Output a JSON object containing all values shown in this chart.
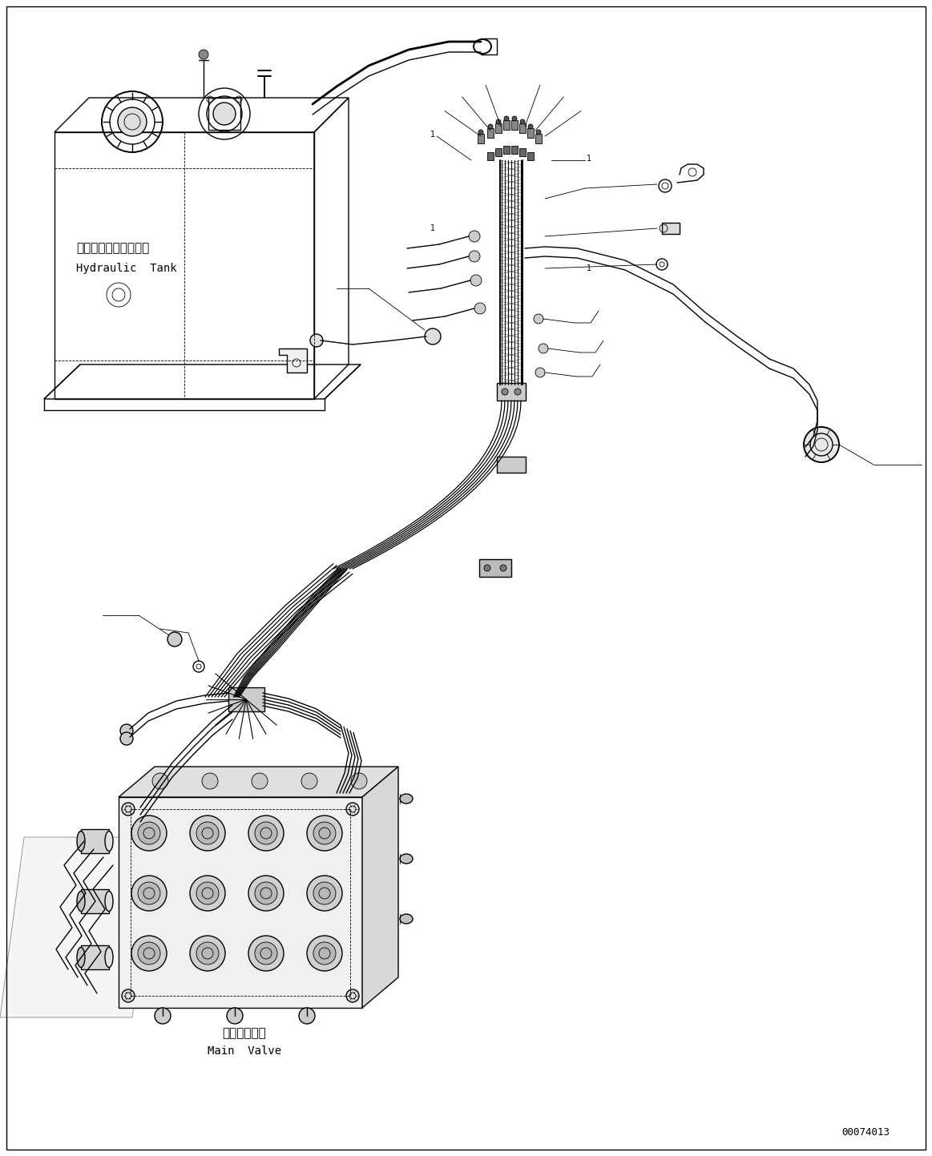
{
  "fig_width": 11.63,
  "fig_height": 14.43,
  "dpi": 100,
  "bg_color": "#ffffff",
  "line_color": "#000000",
  "part_number": "00074013",
  "label_hydraulic_tank_jp": "ハイドロリックタンク",
  "label_hydraulic_tank_en": "Hydraulic  Tank",
  "label_main_valve_jp": "メインバルブ",
  "label_main_valve_en": "Main  Valve"
}
